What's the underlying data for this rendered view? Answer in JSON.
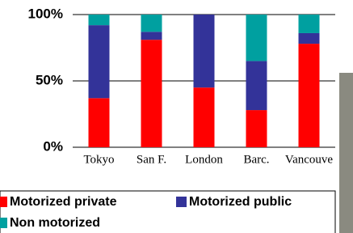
{
  "chart_data": {
    "type": "stacked_bar",
    "categories": [
      "Tokyo",
      "San F.",
      "London",
      "Barc.",
      "Vancouve"
    ],
    "series": [
      {
        "name": "Motorized private",
        "color": "#ff0000",
        "values": [
          37,
          81,
          45,
          28,
          78
        ]
      },
      {
        "name": "Motorized public",
        "color": "#333399",
        "values": [
          55,
          6,
          55,
          37,
          8
        ]
      },
      {
        "name": "Non motorized",
        "color": "#00a0a0",
        "values": [
          8,
          13,
          0,
          35,
          14
        ]
      }
    ],
    "ylim": [
      0,
      100
    ],
    "yticks": [
      {
        "value": 0,
        "label": "0%"
      },
      {
        "value": 50,
        "label": "50%"
      },
      {
        "value": 100,
        "label": "100%"
      }
    ],
    "grid": true
  }
}
